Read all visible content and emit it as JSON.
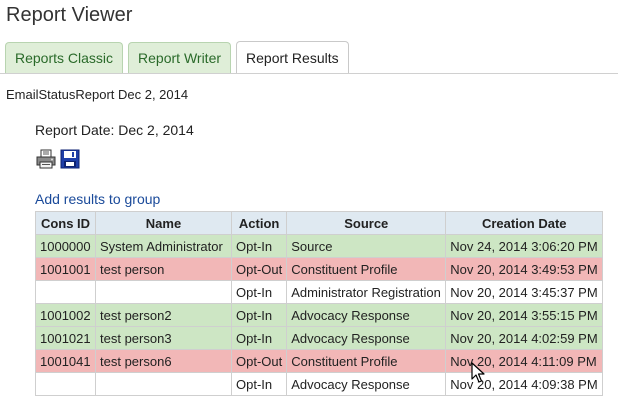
{
  "page": {
    "title": "Report Viewer"
  },
  "tabs": [
    {
      "label": "Reports Classic",
      "active": false
    },
    {
      "label": "Report Writer",
      "active": false
    },
    {
      "label": "Report Results",
      "active": true
    }
  ],
  "report": {
    "name": "EmailStatusReport Dec 2, 2014",
    "date_label": "Report Date: Dec 2, 2014",
    "add_link": "Add results to group",
    "icons": [
      "printer-icon",
      "save-disk-icon"
    ]
  },
  "table": {
    "headers": [
      "Cons ID",
      "Name",
      "Action",
      "Source",
      "Creation Date"
    ],
    "rows": [
      {
        "status": "optin",
        "cells": [
          "1000000",
          "System Administrator",
          "Opt-In",
          "Source",
          "Nov 24, 2014 3:06:20 PM"
        ]
      },
      {
        "status": "optout",
        "cells": [
          "1001001",
          "test person",
          "Opt-Out",
          "Constituent Profile",
          "Nov 20, 2014 3:49:53 PM"
        ]
      },
      {
        "status": "plain",
        "cells": [
          "",
          "",
          "Opt-In",
          "Administrator Registration",
          "Nov 20, 2014 3:45:37 PM"
        ]
      },
      {
        "status": "optin",
        "cells": [
          "1001002",
          "test person2",
          "Opt-In",
          "Advocacy Response",
          "Nov 20, 2014 3:55:15 PM"
        ]
      },
      {
        "status": "optin",
        "cells": [
          "1001021",
          "test person3",
          "Opt-In",
          "Advocacy Response",
          "Nov 20, 2014 4:02:59 PM"
        ]
      },
      {
        "status": "optout",
        "cells": [
          "1001041",
          "test person6",
          "Opt-Out",
          "Constituent Profile",
          "Nov 20, 2014 4:11:09 PM"
        ]
      },
      {
        "status": "plain",
        "cells": [
          "",
          "",
          "Opt-In",
          "Advocacy Response",
          "Nov 20, 2014 4:09:38 PM"
        ]
      }
    ]
  },
  "colors": {
    "optin_row": "#cde6c4",
    "optout_row": "#f2b7b7",
    "header_bg": "#dfe9f1",
    "tab_bg": "#dfeed8",
    "link": "#1a4a9a"
  }
}
